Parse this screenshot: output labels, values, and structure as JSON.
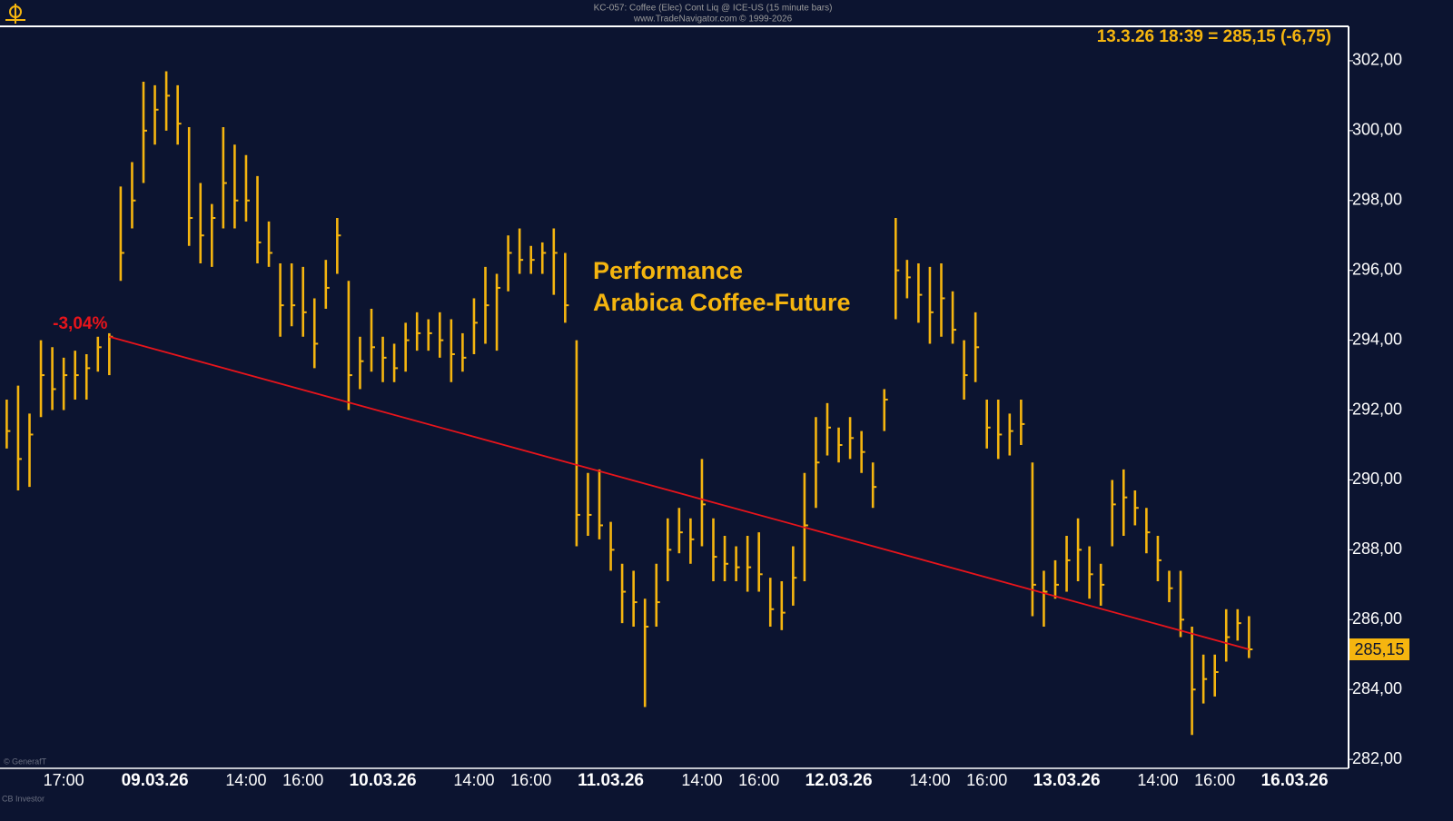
{
  "chart_data": {
    "type": "ohlc",
    "title": "KC-057: Coffee (Elec) Cont Liq @ ICE-US  (15 minute bars)",
    "subtitle": "www.TradeNavigator.com © 1999-2026",
    "quote": "13.3.26 18:39 = 285,15 (-6,75)",
    "annotation": [
      "Performance",
      "Arabica Coffee-Future"
    ],
    "footer": [
      "© GenerafT",
      "CB Investor"
    ],
    "color": "#f5b50f",
    "categories": [
      null,
      null,
      null,
      null,
      null,
      "17:00",
      null,
      null,
      null,
      null,
      null,
      null,
      null,
      "09.03.26",
      null,
      null,
      null,
      null,
      null,
      null,
      null,
      "14:00",
      null,
      null,
      null,
      null,
      "16:00",
      null,
      null,
      null,
      null,
      null,
      null,
      "10.03.26",
      null,
      null,
      null,
      null,
      null,
      null,
      null,
      "14:00",
      null,
      null,
      null,
      null,
      "16:00",
      null,
      null,
      null,
      null,
      null,
      null,
      "11.03.26",
      null,
      null,
      null,
      null,
      null,
      null,
      null,
      "14:00",
      null,
      null,
      null,
      null,
      "16:00",
      null,
      null,
      null,
      null,
      null,
      null,
      "12.03.26",
      null,
      null,
      null,
      null,
      null,
      null,
      null,
      "14:00",
      null,
      null,
      null,
      null,
      "16:00",
      null,
      null,
      null,
      null,
      null,
      null,
      "13.03.26",
      null,
      null,
      null,
      null,
      null,
      null,
      null,
      "14:00",
      null,
      null,
      null,
      null,
      "16:00",
      null,
      null,
      null,
      null,
      null,
      null,
      "16.03.26"
    ],
    "high": [
      292.3,
      292.7,
      291.9,
      294.0,
      293.8,
      293.5,
      293.7,
      293.6,
      294.1,
      294.2,
      298.4,
      299.1,
      301.4,
      301.3,
      301.7,
      301.3,
      300.1,
      298.5,
      297.9,
      300.1,
      299.6,
      299.3,
      298.7,
      297.4,
      296.2,
      296.2,
      296.1,
      295.2,
      296.3,
      297.5,
      295.7,
      294.1,
      294.9,
      294.1,
      293.9,
      294.5,
      294.8,
      294.6,
      294.8,
      294.6,
      294.2,
      295.2,
      296.1,
      295.9,
      297.0,
      297.2,
      296.7,
      296.8,
      297.2,
      296.5,
      294.0,
      290.2,
      290.3,
      288.8,
      287.6,
      287.4,
      286.6,
      287.6,
      288.9,
      289.2,
      288.9,
      290.6,
      288.9,
      288.4,
      288.1,
      288.4,
      288.5,
      287.2,
      287.1,
      288.1,
      290.2,
      291.8,
      292.2,
      291.5,
      291.8,
      291.4,
      290.5,
      292.6,
      297.5,
      296.3,
      296.2,
      296.1,
      296.2,
      295.4,
      294.0,
      294.8,
      292.3,
      292.3,
      291.9,
      292.3,
      290.5,
      287.4,
      287.7,
      288.4,
      288.9,
      288.1,
      287.6,
      290.0,
      290.3,
      289.7,
      289.2,
      288.4,
      287.4,
      287.4,
      285.8,
      285.0,
      285.0,
      286.3,
      286.3,
      286.1,
      null,
      null,
      null,
      null
    ],
    "low": [
      290.9,
      289.7,
      289.8,
      291.8,
      292.0,
      292.0,
      292.3,
      292.3,
      293.1,
      293.0,
      295.7,
      297.2,
      298.5,
      299.6,
      300.0,
      299.6,
      296.7,
      296.2,
      296.1,
      297.2,
      297.2,
      297.4,
      296.2,
      296.1,
      294.1,
      294.4,
      294.1,
      293.2,
      294.9,
      295.9,
      292.0,
      292.6,
      293.1,
      292.8,
      292.8,
      293.1,
      293.7,
      293.7,
      293.5,
      292.8,
      293.1,
      293.6,
      293.9,
      293.7,
      295.4,
      295.9,
      295.9,
      295.9,
      295.3,
      294.5,
      288.1,
      288.4,
      288.3,
      287.4,
      285.9,
      285.8,
      283.5,
      285.8,
      287.1,
      287.9,
      287.6,
      288.1,
      287.1,
      287.1,
      287.1,
      286.8,
      286.8,
      285.8,
      285.7,
      286.4,
      287.1,
      289.2,
      290.7,
      290.5,
      290.6,
      290.2,
      289.2,
      291.4,
      294.6,
      295.2,
      294.5,
      293.9,
      294.1,
      293.9,
      292.3,
      292.8,
      290.9,
      290.6,
      290.7,
      291.0,
      286.1,
      285.8,
      286.6,
      286.8,
      287.1,
      286.6,
      286.4,
      288.1,
      288.4,
      288.7,
      287.9,
      287.1,
      286.5,
      285.5,
      282.7,
      283.6,
      283.8,
      284.8,
      285.4,
      284.9,
      null,
      null,
      null,
      null
    ],
    "close": [
      291.4,
      290.6,
      291.3,
      293.0,
      292.6,
      293.0,
      293.0,
      293.2,
      293.8,
      294.1,
      296.5,
      298.0,
      300.0,
      300.6,
      301.0,
      300.2,
      297.5,
      297.0,
      297.5,
      298.5,
      298.0,
      298.0,
      296.8,
      296.5,
      295.0,
      295.0,
      294.8,
      293.9,
      295.5,
      297.0,
      293.0,
      293.4,
      293.8,
      293.5,
      293.2,
      294.0,
      294.2,
      294.2,
      294.0,
      293.6,
      293.5,
      294.5,
      295.0,
      295.5,
      296.5,
      296.3,
      296.3,
      296.5,
      296.5,
      295.0,
      289.0,
      289.0,
      288.7,
      288.0,
      286.8,
      286.5,
      285.8,
      286.5,
      288.0,
      288.5,
      288.3,
      289.3,
      287.8,
      287.6,
      287.5,
      287.5,
      287.3,
      286.3,
      286.2,
      287.2,
      288.7,
      290.5,
      291.5,
      291.0,
      291.2,
      290.8,
      289.8,
      292.3,
      296.0,
      295.8,
      295.3,
      294.8,
      295.2,
      294.3,
      293.0,
      293.8,
      291.5,
      291.3,
      291.4,
      291.6,
      287.0,
      286.8,
      287.0,
      287.7,
      288.0,
      287.3,
      287.0,
      289.3,
      289.5,
      289.2,
      288.5,
      287.7,
      286.9,
      286.0,
      284.0,
      284.3,
      284.5,
      285.5,
      285.9,
      285.15,
      null,
      null,
      null,
      null
    ],
    "ylim": [
      281.77,
      302.96
    ],
    "yticks": [
      {
        "value": 282,
        "label": "282,00"
      },
      {
        "value": 284,
        "label": "284,00"
      },
      {
        "value": 286,
        "label": "286,00"
      },
      {
        "value": 288,
        "label": "288,00"
      },
      {
        "value": 290,
        "label": "290,00"
      },
      {
        "value": 292,
        "label": "292,00"
      },
      {
        "value": 294,
        "label": "294,00"
      },
      {
        "value": 296,
        "label": "296,00"
      },
      {
        "value": 298,
        "label": "298,00"
      },
      {
        "value": 300,
        "label": "300,00"
      },
      {
        "value": 302,
        "label": "302,00"
      }
    ],
    "last_price": {
      "value": 285.15,
      "label": "285,15"
    },
    "performance": {
      "label": "-3,04%",
      "color": "#e8141b",
      "start": {
        "x": 9,
        "y": 294.1
      },
      "end": {
        "x": 109,
        "y": 285.15
      }
    }
  }
}
